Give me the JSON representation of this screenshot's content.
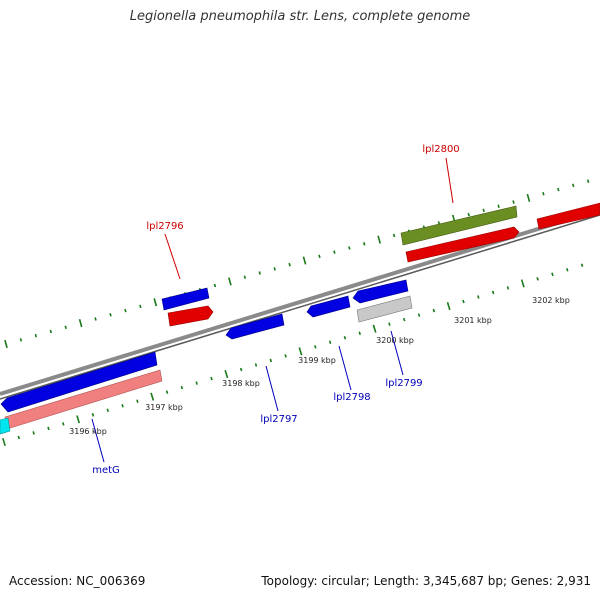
{
  "title": "Legionella pneumophila str. Lens, complete genome",
  "footer": {
    "accession": "Accession: NC_006369",
    "topology": "Topology: circular; Length: 3,345,687 bp; Genes: 2,931"
  },
  "colors": {
    "backbone": "#8a8a8a",
    "tick": "#1a7a1a",
    "forward_gene": "#e00000",
    "reverse_gene": "#0000e0",
    "label_forward": "#cc0000",
    "label_reverse": "#0000bb",
    "rna_gene": "#6b8e23",
    "pseudo_gene": "#c0c0c0",
    "light_gene": "#f08080",
    "other_gene": "#00e5ee"
  },
  "scale_labels": [
    "3196 kbp",
    "3197 kbp",
    "3198 kbp",
    "3199 kbp",
    "3200 kbp",
    "3201 kbp",
    "3202 kbp"
  ],
  "gene_labels": [
    {
      "text": "lpl2800",
      "strand": "forward"
    },
    {
      "text": "lpl2796",
      "strand": "forward"
    },
    {
      "text": "lpl2797",
      "strand": "reverse"
    },
    {
      "text": "lpl2798",
      "strand": "reverse"
    },
    {
      "text": "lpl2799",
      "strand": "reverse"
    },
    {
      "text": "metG",
      "strand": "reverse"
    }
  ]
}
